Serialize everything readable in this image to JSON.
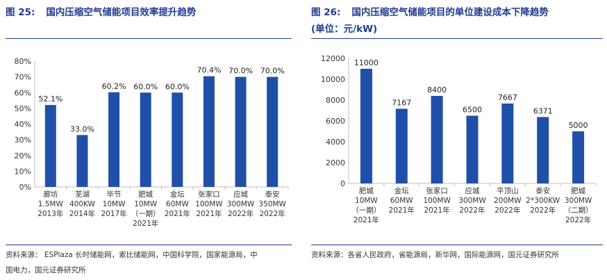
{
  "left": {
    "figure_number": "图 25:",
    "title": "国内压缩空气储能项目效率提升趋势",
    "source_line1": "资料来源： ESPlaza 长时储能网，索比储能网，中国科学院，国家能源局，中",
    "source_line2": "国电力，国元证券研究所"
  },
  "right": {
    "figure_number": "图 26:",
    "title": "国内压缩空气储能项目的单位建设成本下降趋势",
    "subtitle": "(单位：元/kW)",
    "source_line1": "资料来源：各省人民政府，省能源局，新华网，国际能源网，国元证券研究所"
  },
  "colors": {
    "bar": "#1f4fa8",
    "title": "#1f3a93",
    "axis": "#bfbfbf"
  },
  "chart_data": [
    {
      "type": "bar",
      "title": "国内压缩空气储能项目效率提升趋势",
      "categories": [
        [
          "廊坊",
          "1.5MW",
          "2013年"
        ],
        [
          "芜湖",
          "400KW",
          "2014年"
        ],
        [
          "毕节",
          "10MW",
          "2017年"
        ],
        [
          "肥城",
          "10MW",
          "（一期）",
          "2021年"
        ],
        [
          "金坛",
          "60MW",
          "2021年"
        ],
        [
          "张家口",
          "100MW",
          "2021年"
        ],
        [
          "应城",
          "300MW",
          "2022年"
        ],
        [
          "泰安",
          "350MW",
          "2022年"
        ]
      ],
      "values": [
        52.1,
        33.0,
        60.2,
        60.0,
        60.0,
        70.4,
        70.0,
        70.0
      ],
      "value_labels": [
        "52.1%",
        "33.0%",
        "60.2%",
        "60.0%",
        "60.0%",
        "70.4%",
        "70.0%",
        "70.0%"
      ],
      "ylim": [
        0,
        80
      ],
      "yticks": [
        "0%",
        "10%",
        "20%",
        "30%",
        "40%",
        "50%",
        "60%",
        "70%",
        "80%"
      ],
      "grid": false,
      "legend": "none"
    },
    {
      "type": "bar",
      "title": "国内压缩空气储能项目的单位建设成本下降趋势",
      "ylabel": "元/kW",
      "categories": [
        [
          "肥城",
          "10MW",
          "（一期）",
          "2021年"
        ],
        [
          "金坛",
          "60MW",
          "2021年"
        ],
        [
          "张家口",
          "100MW",
          "2021年"
        ],
        [
          "应城",
          "300MW",
          "2022年"
        ],
        [
          "平顶山",
          "200MW",
          "2022年"
        ],
        [
          "泰安",
          "2*300KW",
          "2022年"
        ],
        [
          "肥城",
          "300MW",
          "（二期）",
          "2022年"
        ]
      ],
      "values": [
        11000,
        7167,
        8400,
        6500,
        7667,
        6371,
        5000
      ],
      "value_labels": [
        "11000",
        "7167",
        "8400",
        "6500",
        "7667",
        "6371",
        "5000"
      ],
      "ylim": [
        0,
        12000
      ],
      "yticks": [
        "0",
        "2000",
        "4000",
        "6000",
        "8000",
        "10000",
        "12000"
      ],
      "grid": false,
      "legend": "none"
    }
  ]
}
